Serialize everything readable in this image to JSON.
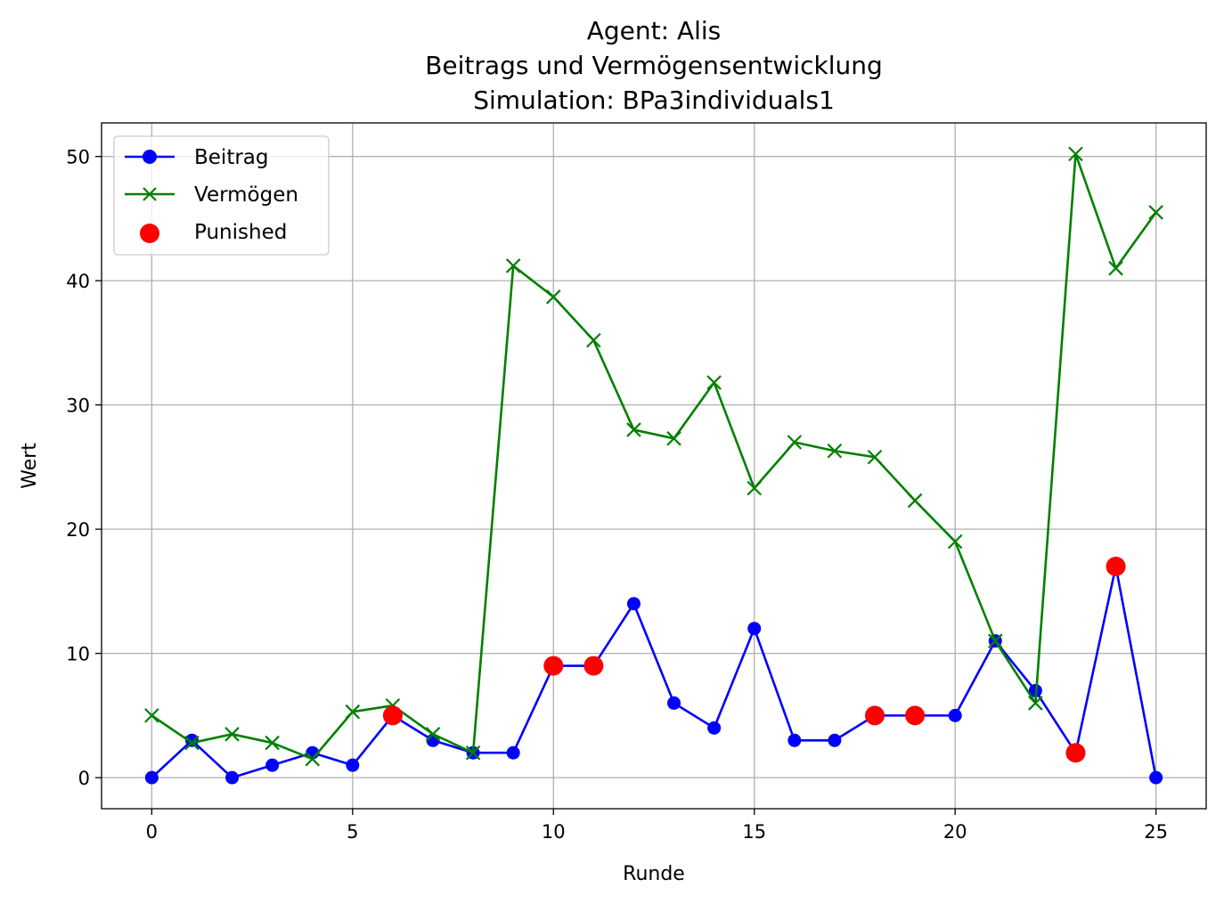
{
  "chart_data": {
    "type": "line",
    "title_lines": [
      "Agent: Alis",
      "Beitrags und Vermögensentwicklung",
      "Simulation: BPa3individuals1"
    ],
    "xlabel": "Runde",
    "ylabel": "Wert",
    "xlim": [
      -1.25,
      26.25
    ],
    "ylim": [
      -2.5,
      52.7
    ],
    "xticks": [
      0,
      5,
      10,
      15,
      20,
      25
    ],
    "yticks": [
      0,
      10,
      20,
      30,
      40,
      50
    ],
    "grid": true,
    "legend_position": "top-left",
    "x": [
      0,
      1,
      2,
      3,
      4,
      5,
      6,
      7,
      8,
      9,
      10,
      11,
      12,
      13,
      14,
      15,
      16,
      17,
      18,
      19,
      20,
      21,
      22,
      23,
      24,
      25
    ],
    "series": [
      {
        "name": "Beitrag",
        "color": "#0000ff",
        "marker": "circle",
        "values": [
          0,
          3,
          0,
          1,
          2,
          1,
          5,
          3,
          2,
          2,
          9,
          9,
          14,
          6,
          4,
          12,
          3,
          3,
          5,
          5,
          5,
          11,
          7,
          2,
          17,
          0
        ]
      },
      {
        "name": "Vermögen",
        "color": "#008000",
        "marker": "x",
        "values": [
          5,
          2.8,
          3.5,
          2.8,
          1.5,
          5.3,
          5.8,
          3.5,
          2,
          41.2,
          38.7,
          35.2,
          28,
          27.3,
          31.8,
          23.3,
          27,
          26.3,
          25.8,
          22.3,
          19,
          11,
          6,
          50.2,
          41,
          45.5
        ]
      }
    ],
    "punished": {
      "name": "Punished",
      "color": "#ff0000",
      "marker": "circle",
      "points": [
        {
          "x": 6,
          "y": 5
        },
        {
          "x": 10,
          "y": 9
        },
        {
          "x": 11,
          "y": 9
        },
        {
          "x": 18,
          "y": 5
        },
        {
          "x": 19,
          "y": 5
        },
        {
          "x": 23,
          "y": 2
        },
        {
          "x": 24,
          "y": 17
        }
      ]
    }
  }
}
